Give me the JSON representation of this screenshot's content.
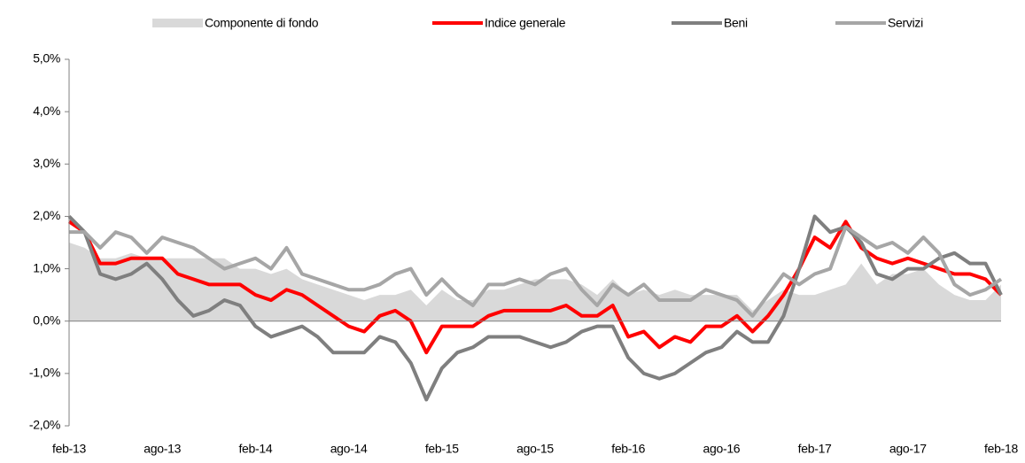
{
  "chart_data": {
    "type": "line",
    "categories": [
      "feb-13",
      null,
      null,
      null,
      null,
      null,
      "ago-13",
      null,
      null,
      null,
      null,
      null,
      "feb-14",
      null,
      null,
      null,
      null,
      null,
      "ago-14",
      null,
      null,
      null,
      null,
      null,
      "feb-15",
      null,
      null,
      null,
      null,
      null,
      "ago-15",
      null,
      null,
      null,
      null,
      null,
      "feb-16",
      null,
      null,
      null,
      null,
      null,
      "ago-16",
      null,
      null,
      null,
      null,
      null,
      "feb-17",
      null,
      null,
      null,
      null,
      null,
      "ago-17",
      null,
      null,
      null,
      null,
      null,
      "feb-18"
    ],
    "ylim": [
      -2,
      5
    ],
    "yticks": [
      {
        "value": -2,
        "label": "-2,0%"
      },
      {
        "value": -1,
        "label": "-1,0%"
      },
      {
        "value": 0,
        "label": "0,0%"
      },
      {
        "value": 1,
        "label": "1,0%"
      },
      {
        "value": 2,
        "label": "2,0%"
      },
      {
        "value": 3,
        "label": "3,0%"
      },
      {
        "value": 4,
        "label": "4,0%"
      },
      {
        "value": 5,
        "label": "5,0%"
      }
    ],
    "legend": "top",
    "series": [
      {
        "name": "Componente di fondo",
        "color": "#d9d9d9",
        "style": "area",
        "values": [
          1.5,
          1.4,
          1.2,
          1.2,
          1.3,
          1.2,
          1.2,
          1.2,
          1.2,
          1.2,
          1.2,
          1.0,
          1.0,
          0.9,
          1.0,
          0.8,
          0.7,
          0.6,
          0.5,
          0.4,
          0.5,
          0.5,
          0.6,
          0.3,
          0.6,
          0.4,
          0.4,
          0.6,
          0.6,
          0.7,
          0.8,
          0.8,
          0.8,
          0.7,
          0.5,
          0.8,
          0.5,
          0.6,
          0.5,
          0.6,
          0.5,
          0.5,
          0.5,
          0.5,
          0.2,
          0.4,
          0.6,
          0.5,
          0.5,
          0.6,
          0.7,
          1.1,
          0.7,
          0.9,
          0.9,
          1.0,
          0.7,
          0.5,
          0.4,
          0.4,
          0.7
        ]
      },
      {
        "name": "Indice generale",
        "color": "#ff0000",
        "style": "line",
        "values": [
          1.9,
          1.7,
          1.1,
          1.1,
          1.2,
          1.2,
          1.2,
          0.9,
          0.8,
          0.7,
          0.7,
          0.7,
          0.5,
          0.4,
          0.6,
          0.5,
          0.3,
          0.1,
          -0.1,
          -0.2,
          0.1,
          0.2,
          0.0,
          -0.6,
          -0.1,
          -0.1,
          -0.1,
          0.1,
          0.2,
          0.2,
          0.2,
          0.2,
          0.3,
          0.1,
          0.1,
          0.3,
          -0.3,
          -0.2,
          -0.5,
          -0.3,
          -0.4,
          -0.1,
          -0.1,
          0.1,
          -0.2,
          0.1,
          0.5,
          1.0,
          1.6,
          1.4,
          1.9,
          1.4,
          1.2,
          1.1,
          1.2,
          1.1,
          1.0,
          0.9,
          0.9,
          0.8,
          0.5
        ]
      },
      {
        "name": "Beni",
        "color": "#7f7f7f",
        "style": "line",
        "values": [
          2.0,
          1.7,
          0.9,
          0.8,
          0.9,
          1.1,
          0.8,
          0.4,
          0.1,
          0.2,
          0.4,
          0.3,
          -0.1,
          -0.3,
          -0.2,
          -0.1,
          -0.3,
          -0.6,
          -0.6,
          -0.6,
          -0.3,
          -0.4,
          -0.8,
          -1.5,
          -0.9,
          -0.6,
          -0.5,
          -0.3,
          -0.3,
          -0.3,
          -0.4,
          -0.5,
          -0.4,
          -0.2,
          -0.1,
          -0.1,
          -0.7,
          -1.0,
          -1.1,
          -1.0,
          -0.8,
          -0.6,
          -0.5,
          -0.2,
          -0.4,
          -0.4,
          0.1,
          1.0,
          2.0,
          1.7,
          1.8,
          1.5,
          0.9,
          0.8,
          1.0,
          1.0,
          1.2,
          1.3,
          1.1,
          1.1,
          0.5
        ]
      },
      {
        "name": "Servizi",
        "color": "#a6a6a6",
        "style": "line",
        "values": [
          1.7,
          1.7,
          1.4,
          1.7,
          1.6,
          1.3,
          1.6,
          1.5,
          1.4,
          1.2,
          1.0,
          1.1,
          1.2,
          1.0,
          1.4,
          0.9,
          0.8,
          0.7,
          0.6,
          0.6,
          0.7,
          0.9,
          1.0,
          0.5,
          0.8,
          0.5,
          0.3,
          0.7,
          0.7,
          0.8,
          0.7,
          0.9,
          1.0,
          0.6,
          0.3,
          0.7,
          0.5,
          0.7,
          0.4,
          0.4,
          0.4,
          0.6,
          0.5,
          0.4,
          0.1,
          0.5,
          0.9,
          0.7,
          0.9,
          1.0,
          1.8,
          1.6,
          1.4,
          1.5,
          1.3,
          1.6,
          1.3,
          0.7,
          0.5,
          0.6,
          0.8
        ]
      }
    ]
  }
}
